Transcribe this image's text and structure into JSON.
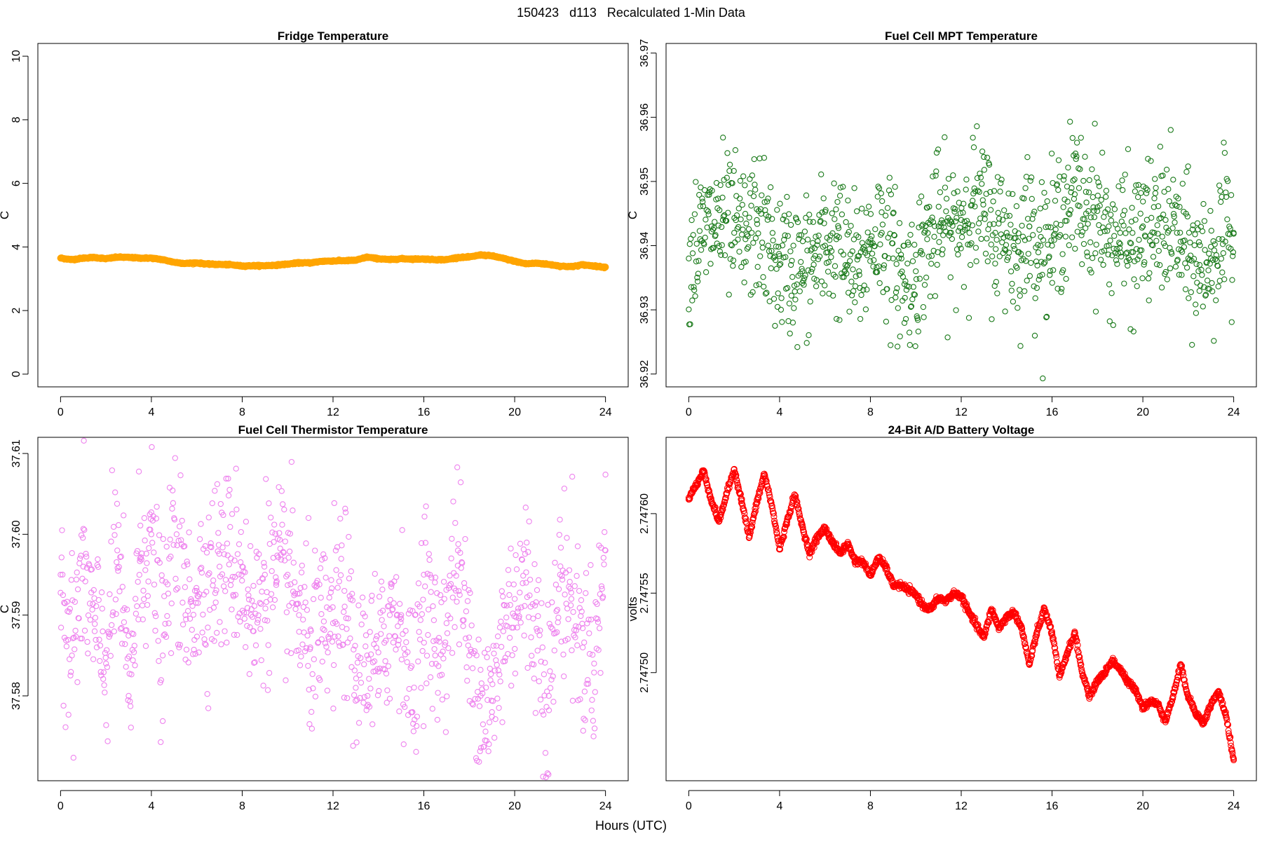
{
  "figure": {
    "title": "150423   d113   Recalculated 1-Min Data",
    "xlabel": "Hours (UTC)"
  },
  "chart_data": [
    {
      "type": "scatter",
      "title": "Fridge Temperature",
      "xlabel": "",
      "ylabel": "C",
      "xlim": [
        -1,
        25
      ],
      "ylim": [
        -0.4,
        10.4
      ],
      "xticks": [
        0,
        4,
        8,
        12,
        16,
        20,
        24
      ],
      "yticks": [
        0,
        2,
        4,
        6,
        8,
        10
      ],
      "color": "#FFA500",
      "series": [
        {
          "x": [
            0,
            0.5,
            1,
            1.5,
            2,
            2.5,
            3,
            3.5,
            4,
            4.5,
            5,
            5.5,
            6,
            6.5,
            7,
            7.5,
            8,
            8.5,
            9,
            9.5,
            10,
            10.5,
            11,
            11.5,
            12,
            12.5,
            13,
            13.5,
            14,
            14.5,
            15,
            15.5,
            16,
            16.5,
            17,
            17.5,
            18,
            18.5,
            19,
            19.5,
            20,
            20.5,
            21,
            21.5,
            22,
            22.5,
            23,
            23.5,
            24
          ],
          "y": [
            3.65,
            3.6,
            3.65,
            3.67,
            3.63,
            3.68,
            3.67,
            3.65,
            3.65,
            3.6,
            3.52,
            3.48,
            3.5,
            3.46,
            3.45,
            3.44,
            3.4,
            3.41,
            3.41,
            3.43,
            3.46,
            3.5,
            3.5,
            3.55,
            3.56,
            3.57,
            3.58,
            3.68,
            3.63,
            3.6,
            3.63,
            3.62,
            3.62,
            3.6,
            3.6,
            3.67,
            3.68,
            3.75,
            3.72,
            3.64,
            3.55,
            3.47,
            3.49,
            3.45,
            3.4,
            3.38,
            3.44,
            3.4,
            3.36
          ]
        }
      ]
    },
    {
      "type": "scatter",
      "title": "Fuel Cell MPT Temperature",
      "xlabel": "",
      "ylabel": "C",
      "xlim": [
        -1,
        25
      ],
      "ylim": [
        36.918,
        36.9715
      ],
      "xticks": [
        0,
        4,
        8,
        12,
        16,
        20,
        24
      ],
      "yticks": [
        36.92,
        36.93,
        36.94,
        36.95,
        36.96,
        36.97
      ],
      "color": "#1A7A1A",
      "series": [
        {
          "x": [
            0,
            0.5,
            1,
            1.5,
            2,
            2.5,
            3,
            3.5,
            4,
            4.5,
            5,
            5.5,
            6,
            6.5,
            7,
            7.5,
            8,
            8.5,
            9,
            9.5,
            10,
            10.5,
            11,
            11.5,
            12,
            12.5,
            13,
            13.5,
            14,
            14.5,
            15,
            15.5,
            16,
            16.5,
            17,
            17.5,
            18,
            18.5,
            19,
            19.5,
            20,
            20.5,
            21,
            21.5,
            22,
            22.5,
            23,
            23.5,
            24
          ],
          "y": [
            36.938,
            36.941,
            36.943,
            36.944,
            36.942,
            36.941,
            36.944,
            36.94,
            36.937,
            36.937,
            36.936,
            36.938,
            36.94,
            36.941,
            36.937,
            36.936,
            36.941,
            36.942,
            36.938,
            36.934,
            36.936,
            36.941,
            36.943,
            36.942,
            36.944,
            36.947,
            36.945,
            36.942,
            36.942,
            36.939,
            36.943,
            36.94,
            36.94,
            36.946,
            36.948,
            36.945,
            36.946,
            36.94,
            36.942,
            36.939,
            36.943,
            36.942,
            36.944,
            36.942,
            36.938,
            36.937,
            36.938,
            36.941,
            36.942
          ]
        }
      ]
    },
    {
      "type": "scatter",
      "title": "Fuel Cell Thermistor Temperature",
      "xlabel": "",
      "ylabel": "C",
      "xlim": [
        -1,
        25
      ],
      "ylim": [
        37.5695,
        37.612
      ],
      "xticks": [
        0,
        4,
        8,
        12,
        16,
        20,
        24
      ],
      "yticks": [
        37.58,
        37.59,
        37.6,
        37.61
      ],
      "color": "#EE82EE",
      "series": [
        {
          "x": [
            0,
            0.5,
            1,
            1.5,
            2,
            2.5,
            3,
            3.5,
            4,
            4.5,
            5,
            5.5,
            6,
            6.5,
            7,
            7.5,
            8,
            8.5,
            9,
            9.5,
            10,
            10.5,
            11,
            11.5,
            12,
            12.5,
            13,
            13.5,
            14,
            14.5,
            15,
            15.5,
            16,
            16.5,
            17,
            17.5,
            18,
            18.5,
            19,
            19.5,
            20,
            20.5,
            21,
            21.5,
            22,
            22.5,
            23,
            23.5,
            24
          ],
          "y": [
            37.595,
            37.585,
            37.596,
            37.588,
            37.584,
            37.598,
            37.58,
            37.597,
            37.6,
            37.585,
            37.602,
            37.59,
            37.593,
            37.595,
            37.596,
            37.597,
            37.596,
            37.588,
            37.595,
            37.594,
            37.595,
            37.59,
            37.586,
            37.587,
            37.589,
            37.593,
            37.581,
            37.585,
            37.583,
            37.59,
            37.59,
            37.578,
            37.595,
            37.585,
            37.589,
            37.598,
            37.585,
            37.58,
            37.578,
            37.588,
            37.592,
            37.594,
            37.588,
            37.58,
            37.595,
            37.592,
            37.586,
            37.584,
            37.598
          ]
        }
      ]
    },
    {
      "type": "scatter",
      "title": "24-Bit A/D Battery Voltage",
      "xlabel": "",
      "ylabel": "volts",
      "xlim": [
        -1,
        25
      ],
      "ylim": [
        2.747432,
        2.747648
      ],
      "xticks": [
        0,
        4,
        8,
        12,
        16,
        20,
        24
      ],
      "yticks": [
        2.7475,
        2.74755,
        2.7476
      ],
      "color": "#FF0000",
      "series": [
        {
          "x": [
            0,
            0.33,
            0.66,
            1.0,
            1.33,
            1.66,
            2.0,
            2.33,
            2.66,
            3.0,
            3.33,
            3.66,
            4.0,
            4.33,
            4.66,
            5.0,
            5.33,
            5.66,
            6.0,
            6.33,
            6.66,
            7.0,
            7.33,
            7.66,
            8.0,
            8.33,
            8.66,
            9.0,
            9.33,
            9.66,
            10.0,
            10.33,
            10.66,
            11.0,
            11.33,
            11.66,
            12.0,
            12.33,
            12.66,
            13.0,
            13.33,
            13.66,
            14.0,
            14.33,
            14.66,
            15.0,
            15.33,
            15.66,
            16.0,
            16.33,
            16.66,
            17.0,
            17.33,
            17.66,
            18.0,
            18.33,
            18.66,
            19.0,
            19.33,
            19.66,
            20.0,
            20.33,
            20.66,
            21.0,
            21.33,
            21.66,
            22.0,
            22.33,
            22.66,
            23.0,
            23.33,
            23.66,
            24.0
          ],
          "y": [
            2.74761,
            2.747618,
            2.747627,
            2.747608,
            2.747595,
            2.747612,
            2.747628,
            2.747608,
            2.747585,
            2.747607,
            2.747625,
            2.747605,
            2.747578,
            2.747595,
            2.747612,
            2.747592,
            2.747575,
            2.747585,
            2.747591,
            2.747582,
            2.747575,
            2.747581,
            2.74757,
            2.74757,
            2.747561,
            2.747572,
            2.747567,
            2.747555,
            2.747555,
            2.747552,
            2.747549,
            2.747542,
            2.74754,
            2.747547,
            2.747545,
            2.74755,
            2.747548,
            2.747538,
            2.74753,
            2.747522,
            2.74754,
            2.747528,
            2.747535,
            2.747538,
            2.747528,
            2.747505,
            2.747525,
            2.74754,
            2.747525,
            2.747497,
            2.747512,
            2.747525,
            2.7475,
            2.747485,
            2.747495,
            2.7475,
            2.747508,
            2.747502,
            2.747494,
            2.74749,
            2.747478,
            2.747482,
            2.74748,
            2.74747,
            2.747485,
            2.747505,
            2.747485,
            2.747475,
            2.747468,
            2.74748,
            2.747488,
            2.747473,
            2.747445
          ]
        }
      ]
    }
  ]
}
